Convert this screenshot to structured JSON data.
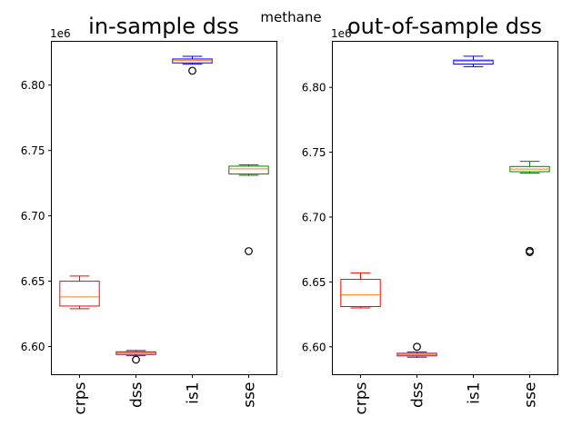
{
  "figure": {
    "suptitle": "methane"
  },
  "chart_data": [
    {
      "type": "box",
      "title": "in-sample dss",
      "offset_label": "1e6",
      "categories": [
        "crps",
        "dss",
        "is1",
        "sse"
      ],
      "ylim": [
        6.5785,
        6.8335
      ],
      "yticks": [
        6.6,
        6.65,
        6.7,
        6.75,
        6.8
      ],
      "ytick_labels": [
        "6.60",
        "6.65",
        "6.70",
        "6.75",
        "6.80"
      ],
      "grid": false,
      "boxes": [
        {
          "name": "crps",
          "color": "#ff0000",
          "whisker_low": 6.629,
          "q1": 6.631,
          "median": 6.638,
          "q3": 6.65,
          "whisker_high": 6.654,
          "fliers": []
        },
        {
          "name": "dss",
          "color": "#800080",
          "whisker_low": 6.593,
          "q1": 6.594,
          "median": 6.595,
          "q3": 6.596,
          "whisker_high": 6.597,
          "fliers": [
            6.59
          ]
        },
        {
          "name": "is1",
          "color": "#0000ff",
          "whisker_low": 6.816,
          "q1": 6.817,
          "median": 6.819,
          "q3": 6.82,
          "whisker_high": 6.822,
          "fliers": [
            6.811
          ]
        },
        {
          "name": "sse",
          "color": "#008000",
          "whisker_low": 6.731,
          "q1": 6.732,
          "median": 6.736,
          "q3": 6.738,
          "whisker_high": 6.739,
          "fliers": [
            6.673
          ]
        }
      ]
    },
    {
      "type": "box",
      "title": "out-of-sample dss",
      "offset_label": "1e6",
      "categories": [
        "crps",
        "dss",
        "is1",
        "sse"
      ],
      "ylim": [
        6.5785,
        6.8355
      ],
      "yticks": [
        6.6,
        6.65,
        6.7,
        6.75,
        6.8
      ],
      "ytick_labels": [
        "6.60",
        "6.65",
        "6.70",
        "6.75",
        "6.80"
      ],
      "grid": false,
      "boxes": [
        {
          "name": "crps",
          "color": "#ff0000",
          "whisker_low": 6.63,
          "q1": 6.631,
          "median": 6.64,
          "q3": 6.652,
          "whisker_high": 6.657,
          "fliers": []
        },
        {
          "name": "dss",
          "color": "#800080",
          "whisker_low": 6.592,
          "q1": 6.593,
          "median": 6.594,
          "q3": 6.595,
          "whisker_high": 6.596,
          "fliers": [
            6.6
          ]
        },
        {
          "name": "is1",
          "color": "#0000ff",
          "whisker_low": 6.816,
          "q1": 6.818,
          "median": 6.82,
          "q3": 6.821,
          "whisker_high": 6.824,
          "fliers": []
        },
        {
          "name": "sse",
          "color": "#008000",
          "whisker_low": 6.734,
          "q1": 6.735,
          "median": 6.737,
          "q3": 6.739,
          "whisker_high": 6.743,
          "fliers": [
            6.673,
            6.674
          ]
        }
      ]
    }
  ],
  "style": {
    "median_color": "#ff7f0e",
    "axis_color": "#000000"
  }
}
